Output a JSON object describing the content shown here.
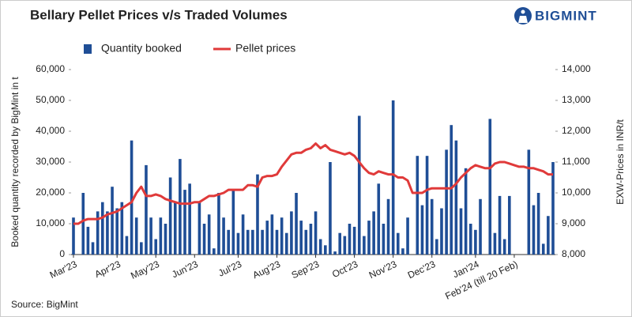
{
  "logo": "BIGMINT",
  "chart_data": {
    "type": "bar",
    "title": "Bellary Pellet Prices v/s Traded Volumes",
    "ylabel": "Booked quantity recorded by BigMint in t",
    "y2label": "EXW-Prices in INR/t",
    "source": "Source: BigMint",
    "categories": [
      "Mar'23",
      null,
      null,
      null,
      null,
      null,
      null,
      null,
      null,
      "Apr'23",
      null,
      null,
      null,
      null,
      null,
      null,
      null,
      "May'23",
      null,
      null,
      null,
      null,
      null,
      null,
      null,
      "Jun'23",
      null,
      null,
      null,
      null,
      null,
      null,
      null,
      null,
      "Jul'23",
      null,
      null,
      null,
      null,
      null,
      null,
      null,
      "Aug'23",
      null,
      null,
      null,
      null,
      null,
      null,
      null,
      "Sep'23",
      null,
      null,
      null,
      null,
      null,
      null,
      null,
      "Oct'23",
      null,
      null,
      null,
      null,
      null,
      null,
      null,
      "Nov'23",
      null,
      null,
      null,
      null,
      null,
      null,
      null,
      "Dec'23",
      null,
      null,
      null,
      null,
      null,
      null,
      null,
      null,
      "Jan'24",
      null,
      null,
      null,
      null,
      null,
      null,
      null,
      "Feb'24 (till 20 Feb)",
      null,
      null,
      null,
      null,
      null,
      null,
      null,
      null
    ],
    "series": [
      {
        "name": "Quantity booked",
        "color": "#1f4e96",
        "axis": "y",
        "type": "bar",
        "values": [
          12000,
          0,
          20000,
          9000,
          4000,
          14000,
          17000,
          14000,
          22000,
          15000,
          17000,
          6000,
          37000,
          12000,
          4000,
          29000,
          12000,
          5000,
          12000,
          10000,
          25000,
          17000,
          31000,
          21000,
          23000,
          0,
          17000,
          10000,
          13000,
          2000,
          20000,
          12000,
          8000,
          21000,
          7000,
          13000,
          8000,
          8000,
          26000,
          8000,
          11000,
          13000,
          8000,
          12000,
          7000,
          14000,
          20000,
          11000,
          8000,
          10000,
          14000,
          5000,
          3000,
          30000,
          1000,
          7000,
          6000,
          10000,
          9000,
          45000,
          6000,
          11000,
          14000,
          23000,
          10000,
          18000,
          50000,
          7000,
          2000,
          12000,
          0,
          32000,
          16000,
          32000,
          18000,
          5000,
          15000,
          34000,
          42000,
          37000,
          15000,
          28000,
          10000,
          8000,
          18000,
          0,
          44000,
          7000,
          19000,
          5000,
          19000,
          0,
          0,
          0,
          34000,
          16000,
          20000,
          3500,
          12500,
          30000
        ]
      },
      {
        "name": "Pellet prices",
        "color": "#e03a3a",
        "axis": "y2",
        "type": "line",
        "values": [
          9000,
          9000,
          9100,
          9150,
          9150,
          9150,
          9200,
          9300,
          9350,
          9400,
          9500,
          9600,
          9700,
          10000,
          10200,
          9900,
          9900,
          9950,
          9900,
          9800,
          9750,
          9700,
          9650,
          9650,
          9650,
          9700,
          9700,
          9800,
          9900,
          9900,
          9950,
          10000,
          10100,
          10100,
          10100,
          10100,
          10250,
          10250,
          10200,
          10500,
          10550,
          10550,
          10600,
          10850,
          11050,
          11250,
          11300,
          11300,
          11400,
          11450,
          11600,
          11450,
          11550,
          11400,
          11350,
          11300,
          11250,
          11300,
          11200,
          11000,
          10800,
          10650,
          10600,
          10700,
          10650,
          10600,
          10600,
          10500,
          10500,
          10400,
          10000,
          10000,
          10000,
          10100,
          10150,
          10150,
          10150,
          10150,
          10150,
          10300,
          10500,
          10650,
          10800,
          10900,
          10850,
          10800,
          10800,
          10950,
          11000,
          11000,
          10950,
          10900,
          10850,
          10850,
          10800,
          10800,
          10750,
          10700,
          10600,
          10600
        ]
      }
    ],
    "ylim": [
      0,
      60000
    ],
    "yticks": [
      0,
      {
        "value": 10000,
        "label": "10,000"
      },
      {
        "value": 20000,
        "label": "20,000"
      },
      {
        "value": 30000,
        "label": "30,000"
      },
      {
        "value": 40000,
        "label": "40,000"
      },
      {
        "value": 50000,
        "label": "50,000"
      },
      {
        "value": 60000,
        "label": "60,000"
      }
    ],
    "y2lim": [
      8000,
      14000
    ],
    "y2ticks": [
      {
        "value": 8000,
        "label": "8,000"
      },
      {
        "value": 9000,
        "label": "9,000"
      },
      {
        "value": 10000,
        "label": "10,000"
      },
      {
        "value": 11000,
        "label": "11,000"
      },
      {
        "value": 12000,
        "label": "12,000"
      },
      {
        "value": 13000,
        "label": "13,000"
      },
      {
        "value": 14000,
        "label": "14,000"
      }
    ],
    "grid": false,
    "legend": "top-left"
  }
}
